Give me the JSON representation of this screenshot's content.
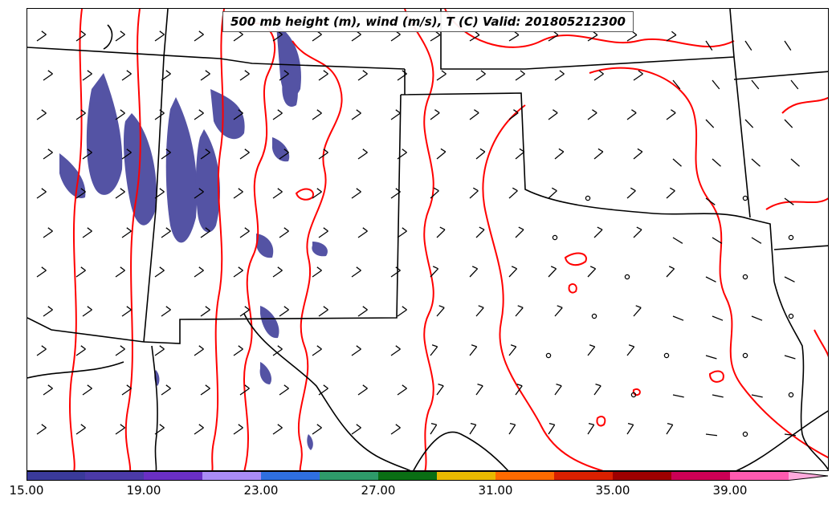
{
  "map": {
    "title": "500 mb height (m), wind (m/s), T (C) Valid: 201805212300",
    "region": "Southern Plains and Southwest United States",
    "features": [
      "state boundaries",
      "coastline",
      "500 mb height contours",
      "wind barbs",
      "shaded field"
    ],
    "contour_color": "#ff0000",
    "shade_color": "#4b4aa0"
  },
  "colorbar": {
    "colors": [
      "#3a3a9a",
      "#4b3aa8",
      "#6a2fc4",
      "#a98cf5",
      "#2f6fe0",
      "#2e9a6a",
      "#0a6e14",
      "#e9b800",
      "#ff6a00",
      "#d92000",
      "#9e0000",
      "#cc0055",
      "#ff5ab0",
      "#ffaadd"
    ],
    "tick_labels": [
      "15.00",
      "19.00",
      "23.00",
      "27.00",
      "31.00",
      "35.00",
      "39.00"
    ]
  }
}
